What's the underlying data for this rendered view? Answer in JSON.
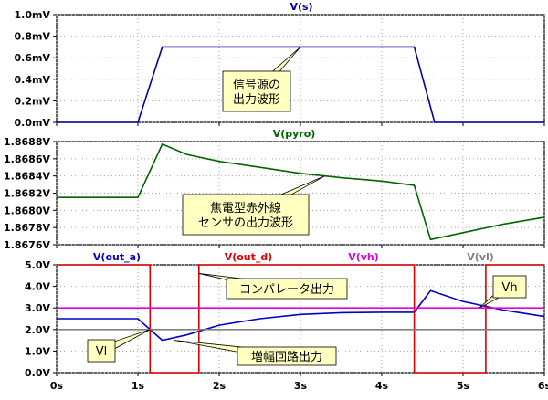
{
  "chart_data": [
    {
      "type": "line",
      "title": "V(s)",
      "xlim": [
        0,
        6
      ],
      "ylim": [
        0,
        1.0
      ],
      "yticks": [
        "0.0mV",
        "0.2mV",
        "0.4mV",
        "0.6mV",
        "0.8mV",
        "1.0mV"
      ],
      "grid": true,
      "series": [
        {
          "name": "V(s)",
          "color": "#0000a0",
          "x": [
            0,
            1.0,
            1.3,
            4.4,
            4.65,
            6.0
          ],
          "y": [
            0,
            0,
            0.7,
            0.7,
            0,
            0
          ]
        }
      ],
      "annotation": {
        "text": "信号源の\n出力波形",
        "target": [
          3.0,
          0.7
        ]
      }
    },
    {
      "type": "line",
      "title": "V(pyro)",
      "xlim": [
        0,
        6
      ],
      "ylim": [
        1.8676,
        1.8688
      ],
      "yticks": [
        "1.8676V",
        "1.8678V",
        "1.8680V",
        "1.8682V",
        "1.8684V",
        "1.8686V",
        "1.8688V"
      ],
      "grid": true,
      "series": [
        {
          "name": "V(pyro)",
          "color": "#006400",
          "x": [
            0,
            1.0,
            1.3,
            1.6,
            2.0,
            2.5,
            3.0,
            3.5,
            4.0,
            4.4,
            4.6,
            5.0,
            5.5,
            6.0
          ],
          "y": [
            1.86815,
            1.86815,
            1.86877,
            1.86865,
            1.86857,
            1.8685,
            1.86843,
            1.86838,
            1.86834,
            1.86829,
            1.86766,
            1.86774,
            1.86784,
            1.86792
          ]
        }
      ],
      "annotation": {
        "text": "焦電型赤外線\nセンサの出力波形",
        "target": [
          3.3,
          1.8684
        ]
      }
    },
    {
      "type": "line",
      "xlim": [
        0,
        6
      ],
      "ylim": [
        0,
        5.0
      ],
      "xticks": [
        "0s",
        "1s",
        "2s",
        "3s",
        "4s",
        "5s",
        "6s"
      ],
      "yticks": [
        "0.0V",
        "1.0V",
        "2.0V",
        "3.0V",
        "4.0V",
        "5.0V"
      ],
      "grid": true,
      "series": [
        {
          "name": "V(out_a)",
          "color": "#0000c8",
          "x": [
            0,
            1.0,
            1.3,
            1.6,
            2.0,
            2.5,
            3.0,
            3.5,
            4.0,
            4.4,
            4.6,
            5.0,
            5.5,
            6.0
          ],
          "y": [
            2.5,
            2.5,
            1.5,
            1.75,
            2.2,
            2.5,
            2.7,
            2.78,
            2.8,
            2.8,
            3.8,
            3.3,
            2.9,
            2.6
          ]
        },
        {
          "name": "V(out_d)",
          "color": "#e00000",
          "x": [
            0,
            1.15,
            1.15,
            1.75,
            1.75,
            4.4,
            4.4,
            5.28,
            5.28,
            6.0
          ],
          "y": [
            5.0,
            5.0,
            0.0,
            0.0,
            5.0,
            5.0,
            0.0,
            0.0,
            5.0,
            5.0
          ]
        },
        {
          "name": "V(vh)",
          "color": "#e000e0",
          "x": [
            0,
            6
          ],
          "y": [
            3.0,
            3.0
          ]
        },
        {
          "name": "V(vl)",
          "color": "#808080",
          "x": [
            0,
            6
          ],
          "y": [
            2.0,
            2.0
          ]
        }
      ],
      "annotations": [
        {
          "text": "コンパレータ出力",
          "target": [
            1.75,
            4.6
          ]
        },
        {
          "text": "増幅回路出力",
          "target": [
            1.45,
            1.5
          ]
        },
        {
          "text": "Vl",
          "target": [
            1.15,
            2.0
          ]
        },
        {
          "text": "Vh",
          "target": [
            5.2,
            3.0
          ]
        }
      ]
    }
  ]
}
